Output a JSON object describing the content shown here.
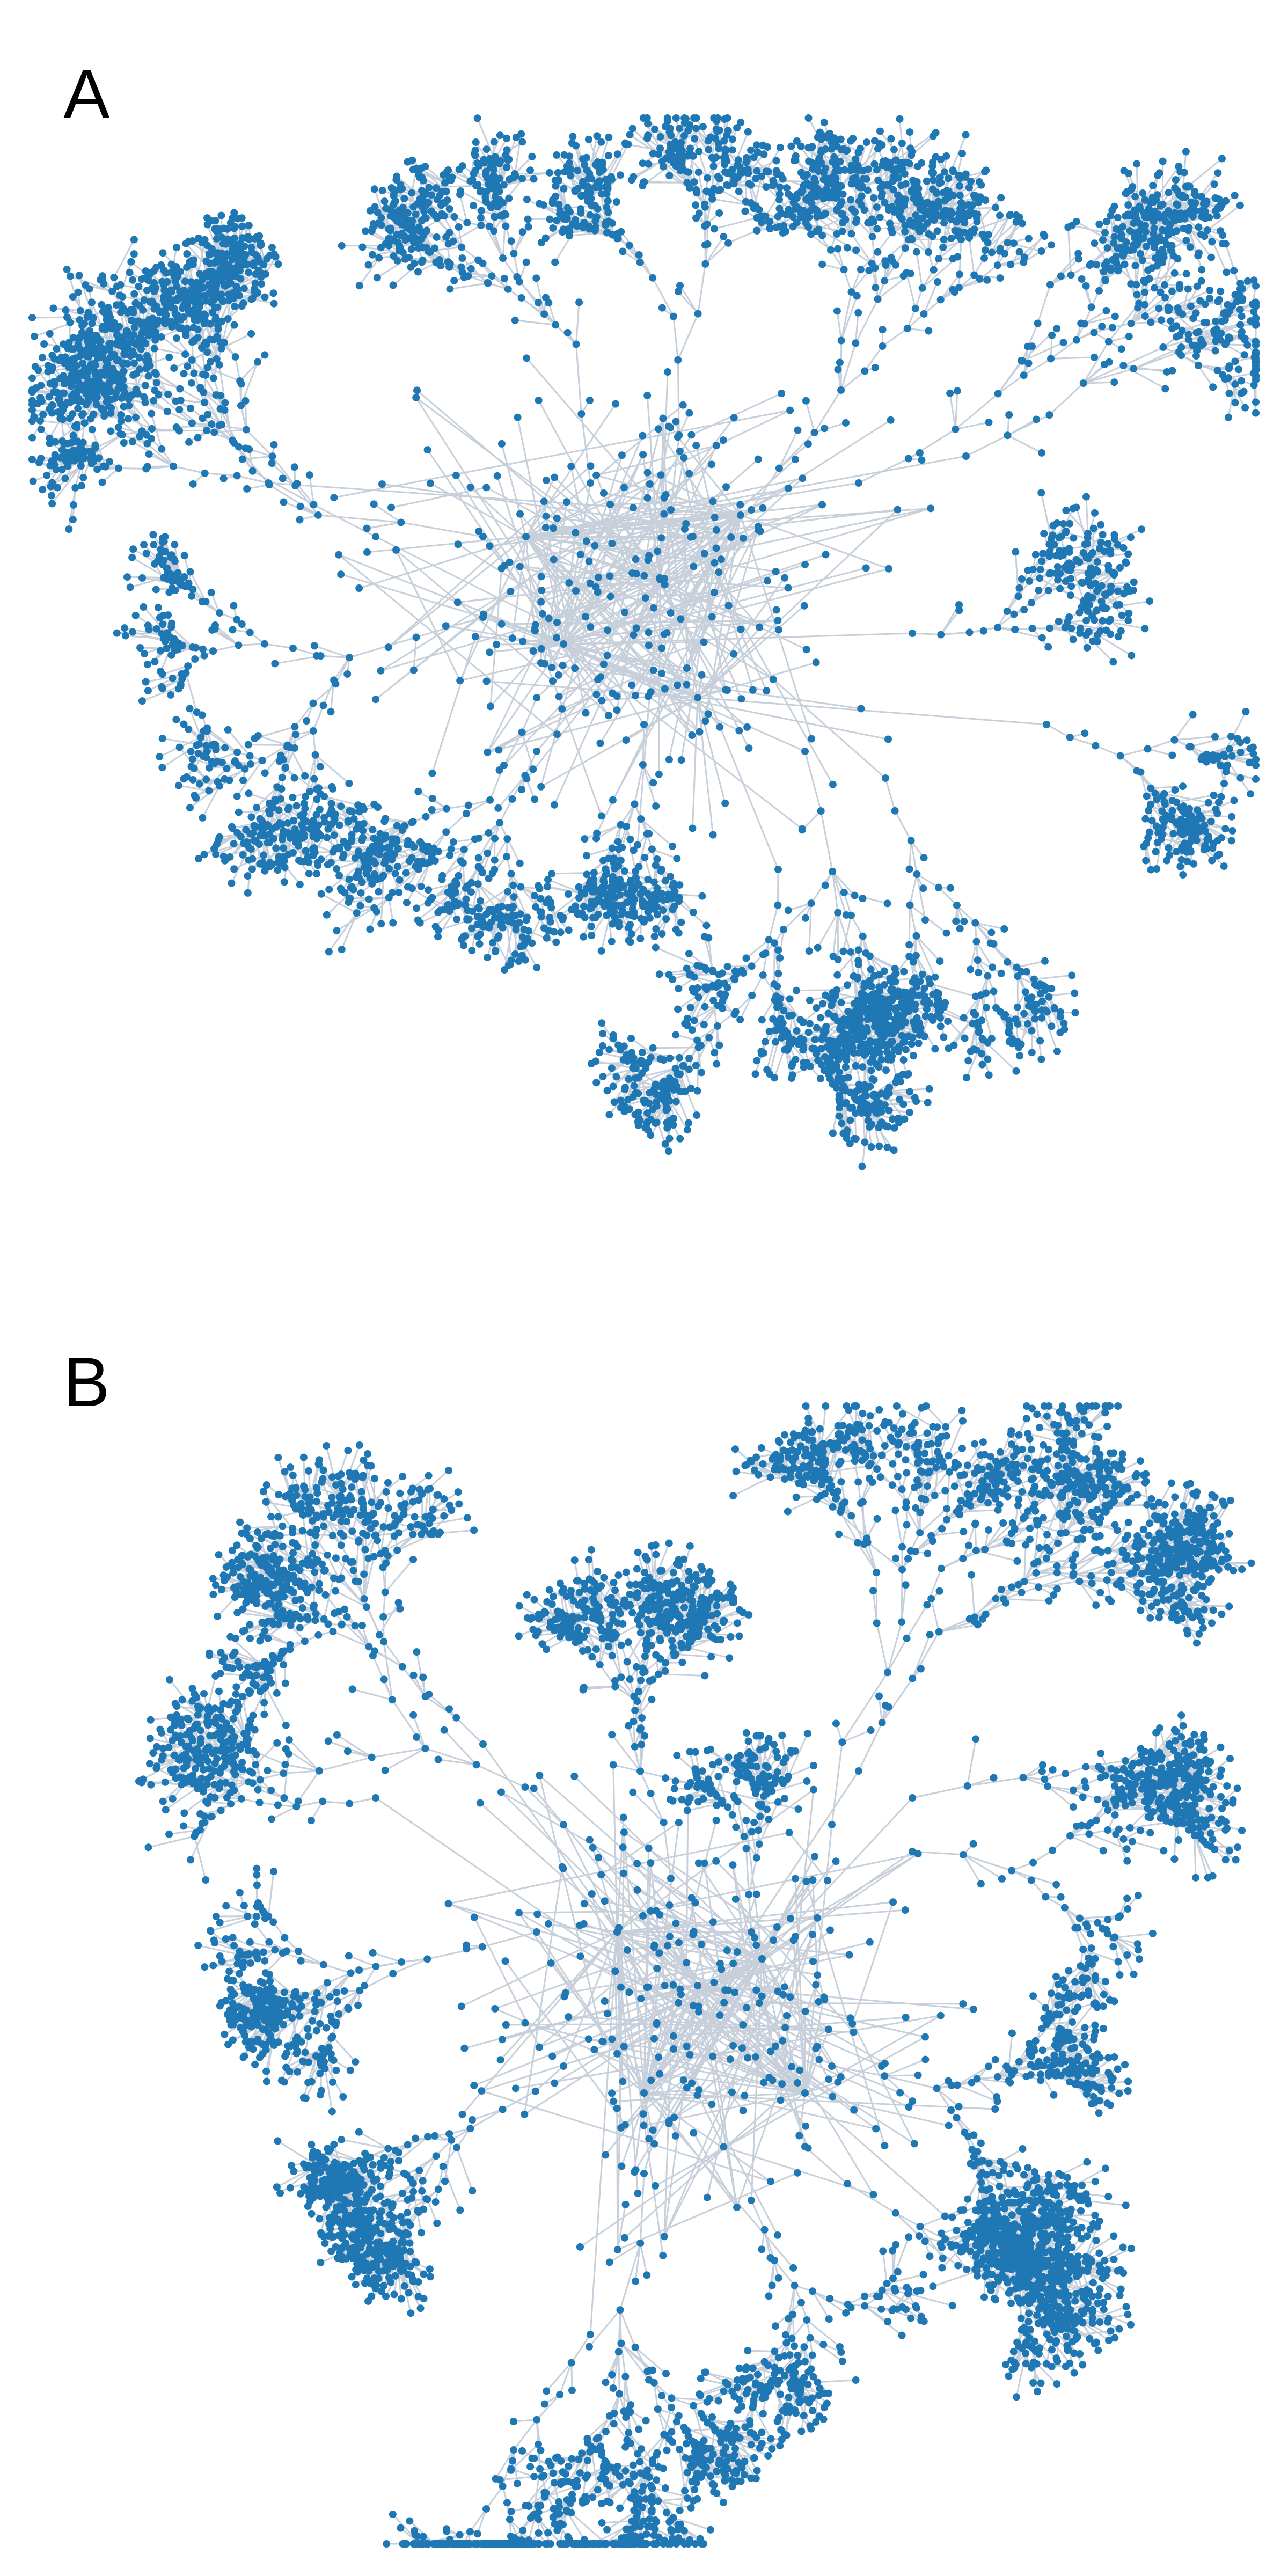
{
  "figure": {
    "panels": [
      {
        "id": "A",
        "label": "A"
      },
      {
        "id": "B",
        "label": "B"
      }
    ]
  },
  "style": {
    "node_color": "#1f77b4",
    "edge_color": "#c7d0da",
    "background": "#ffffff"
  }
}
